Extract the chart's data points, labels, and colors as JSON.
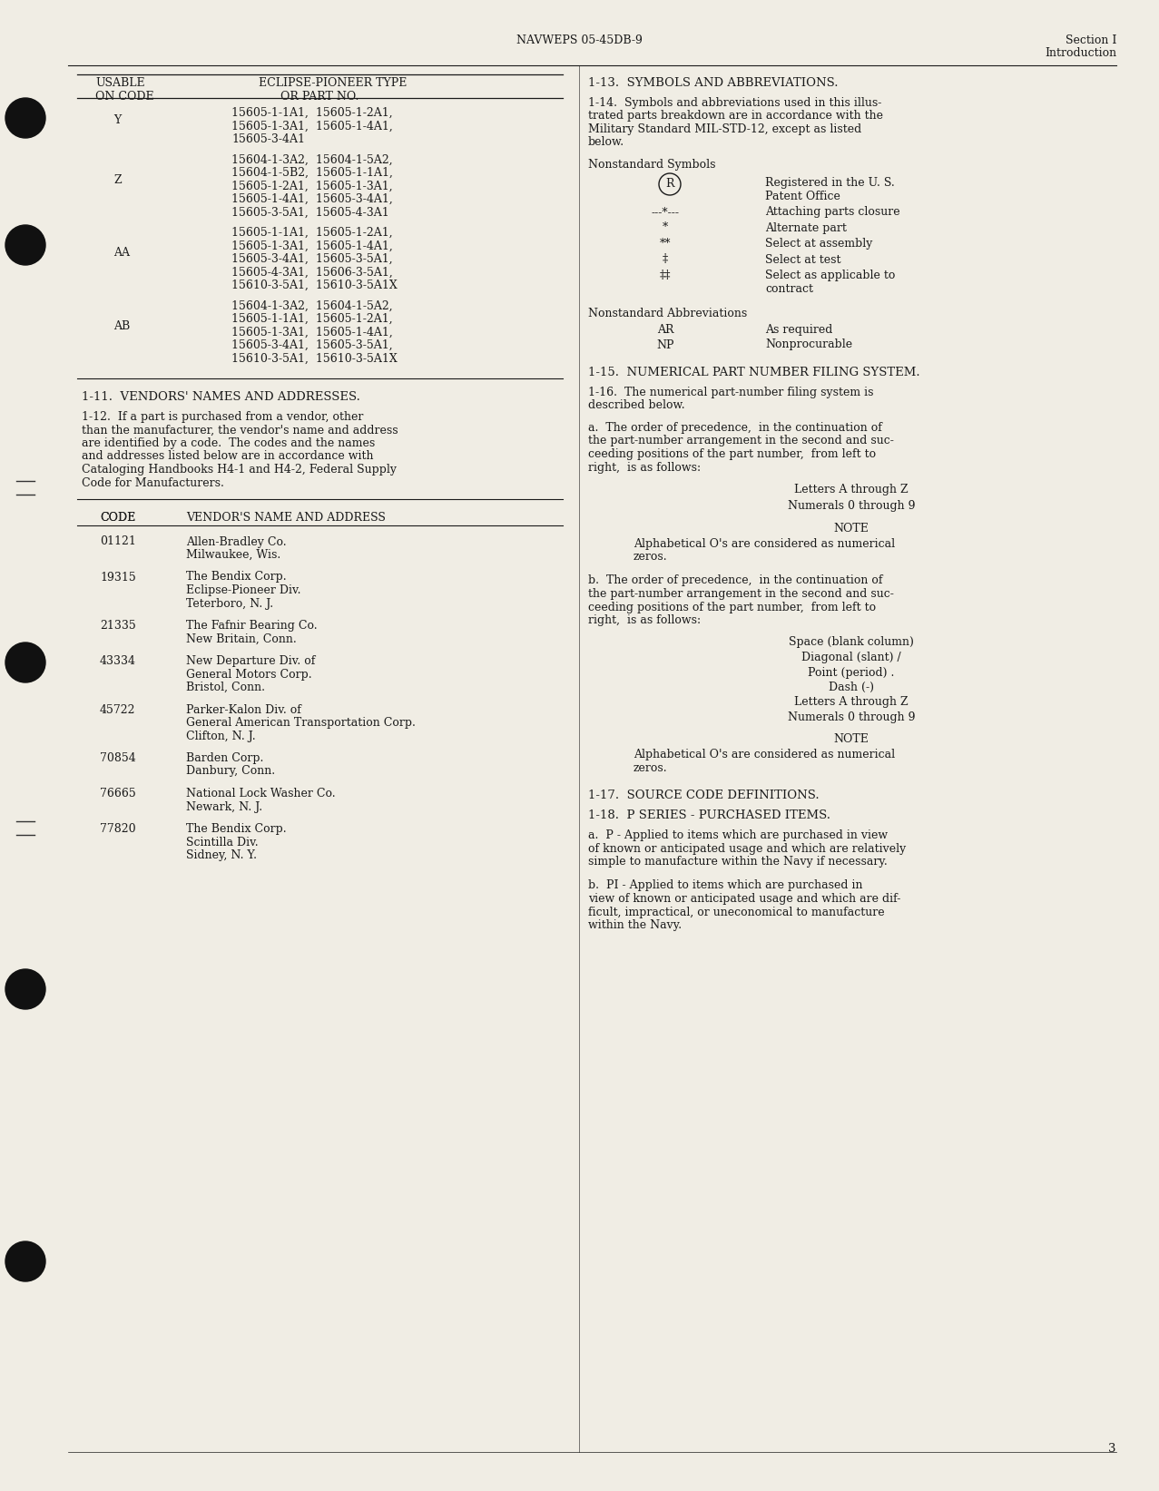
{
  "bg_color": "#f0ede4",
  "text_color": "#1a1a1a",
  "header_center": "NAVWEPS 05-45DB-9",
  "header_right_line1": "Section I",
  "header_right_line2": "Introduction",
  "page_number": "3",
  "table_rows_Y": "15605-1-1A1,  15605-1-2A1,\n15605-1-3A1,  15605-1-4A1,\n15605-3-4A1",
  "table_rows_Z": "15604-1-3A2,  15604-1-5A2,\n15604-1-5B2,  15605-1-1A1,\n15605-1-2A1,  15605-1-3A1,\n15605-1-4A1,  15605-3-4A1,\n15605-3-5A1,  15605-4-3A1",
  "table_rows_AA": "15605-1-1A1,  15605-1-2A1,\n15605-1-3A1,  15605-1-4A1,\n15605-3-4A1,  15605-3-5A1,\n15605-4-3A1,  15606-3-5A1,\n15610-3-5A1,  15610-3-5A1X",
  "table_rows_AB": "15604-1-3A2,  15604-1-5A2,\n15605-1-1A1,  15605-1-2A1,\n15605-1-3A1,  15605-1-4A1,\n15605-3-4A1,  15605-3-5A1,\n15610-3-5A1,  15610-3-5A1X",
  "section_1_11_title": "1-11.  VENDORS' NAMES AND ADDRESSES.",
  "section_1_12_text": "1-12.  If a part is purchased from a vendor, other\nthan the manufacturer, the vendor's name and address\nare identified by a code.  The codes and the names\nand addresses listed below are in accordance with\nCataloging Handbooks H4-1 and H4-2, Federal Supply\nCode for Manufacturers.",
  "vendors": [
    {
      "code": "01121",
      "name": "Allen-Bradley Co.\nMilwaukee, Wis."
    },
    {
      "code": "19315",
      "name": "The Bendix Corp.\nEclipse-Pioneer Div.\nTeterboro, N. J."
    },
    {
      "code": "21335",
      "name": "The Fafnir Bearing Co.\nNew Britain, Conn."
    },
    {
      "code": "43334",
      "name": "New Departure Div. of\nGeneral Motors Corp.\nBristol, Conn."
    },
    {
      "code": "45722",
      "name": "Parker-Kalon Div. of\nGeneral American Transportation Corp.\nClifton, N. J."
    },
    {
      "code": "70854",
      "name": "Barden Corp.\nDanbury, Conn."
    },
    {
      "code": "76665",
      "name": "National Lock Washer Co.\nNewark, N. J."
    },
    {
      "code": "77820",
      "name": "The Bendix Corp.\nScintilla Div.\nSidney, N. Y."
    }
  ],
  "section_1_13_title": "1-13.  SYMBOLS AND ABBREVIATIONS.",
  "section_1_14_text": "1-14.  Symbols and abbreviations used in this illus-\ntrated parts breakdown are in accordance with the\nMilitary Standard MIL-STD-12, except as listed\nbelow.",
  "nonstandard_symbols_title": "Nonstandard Symbols",
  "symbols": [
    {
      "symbol": "®",
      "description": "Registered in the U. S.\nPatent Office",
      "circled": false
    },
    {
      "symbol": "---*---",
      "description": "Attaching parts closure"
    },
    {
      "symbol": "*",
      "description": "Alternate part"
    },
    {
      "symbol": "**",
      "description": "Select at assembly"
    },
    {
      "symbol": "‡",
      "description": "Select at test"
    },
    {
      "symbol": "‡‡",
      "description": "Select as applicable to\ncontract"
    }
  ],
  "nonstandard_abbrev_title": "Nonstandard Abbreviations",
  "abbreviations": [
    {
      "abbr": "AR",
      "meaning": "As required"
    },
    {
      "abbr": "NP",
      "meaning": "Nonprocurable"
    }
  ],
  "section_1_15_title": "1-15.  NUMERICAL PART NUMBER FILING SYSTEM.",
  "section_1_16_text": "1-16.  The numerical part-number filing system is\ndescribed below.",
  "section_a_text": "a.  The order of precedence,  in the continuation of\nthe part-number arrangement in the second and suc-\nceeding positions of the part number,  from left to\nright,  is as follows:",
  "order_a_items": [
    "Letters A through Z",
    "Numerals 0 through 9"
  ],
  "note_1_header": "NOTE",
  "note_1_body": "Alphabetical O's are considered as numerical\nzeros.",
  "section_b_text": "b.  The order of precedence,  in the continuation of\nthe part-number arrangement in the second and suc-\nceeding positions of the part number,  from left to\nright,  is as follows:",
  "order_b_items": [
    "Space (blank column)",
    "Diagonal (slant) /",
    "Point (period) .",
    "Dash (-)",
    "Letters A through Z",
    "Numerals 0 through 9"
  ],
  "note_2_header": "NOTE",
  "note_2_body": "Alphabetical O's are considered as numerical\nzeros.",
  "section_1_17_title": "1-17.  SOURCE CODE DEFINITIONS.",
  "section_1_18_title": "1-18.  P SERIES - PURCHASED ITEMS.",
  "section_a2_text": "a.  P - Applied to items which are purchased in view\nof known or anticipated usage and which are relatively\nsimple to manufacture within the Navy if necessary.",
  "section_b2_text": "b.  PI - Applied to items which are purchased in\nview of known or anticipated usage and which are dif-\nficult, impractical, or uneconomical to manufacture\nwithin the Navy."
}
